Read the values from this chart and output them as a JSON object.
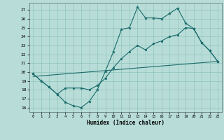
{
  "xlabel": "Humidex (Indice chaleur)",
  "bg_color": "#b8ddd8",
  "grid_color": "#90c4bc",
  "line_color": "#1a6b6b",
  "xlim": [
    -0.5,
    23.5
  ],
  "ylim": [
    15.5,
    27.8
  ],
  "x_ticks": [
    0,
    1,
    2,
    3,
    4,
    5,
    6,
    7,
    8,
    9,
    10,
    11,
    12,
    13,
    14,
    15,
    16,
    17,
    18,
    19,
    20,
    21,
    22,
    23
  ],
  "y_ticks": [
    16,
    17,
    18,
    19,
    20,
    21,
    22,
    23,
    24,
    25,
    26,
    27
  ],
  "line1_x": [
    0,
    1,
    2,
    3,
    4,
    5,
    6,
    7,
    8,
    9,
    10,
    11,
    12,
    13,
    14,
    15,
    16,
    17,
    18,
    19,
    20,
    21,
    22,
    23
  ],
  "line1_y": [
    19.8,
    19.0,
    18.3,
    17.5,
    16.6,
    16.2,
    16.0,
    16.7,
    18.0,
    20.1,
    22.3,
    24.8,
    25.0,
    27.3,
    26.1,
    26.1,
    26.0,
    26.6,
    27.2,
    25.5,
    24.9,
    23.3,
    22.4,
    21.2
  ],
  "line2_x": [
    0,
    1,
    2,
    3,
    4,
    5,
    6,
    7,
    8,
    9,
    10,
    11,
    12,
    13,
    14,
    15,
    16,
    17,
    18,
    19,
    20,
    21,
    22,
    23
  ],
  "line2_y": [
    19.8,
    19.0,
    18.3,
    17.5,
    18.2,
    18.2,
    18.2,
    18.0,
    18.5,
    19.3,
    20.5,
    21.5,
    22.3,
    23.0,
    22.5,
    23.2,
    23.5,
    24.0,
    24.2,
    25.0,
    24.9,
    23.3,
    22.4,
    21.2
  ],
  "line3_x": [
    0,
    23
  ],
  "line3_y": [
    19.5,
    21.2
  ]
}
